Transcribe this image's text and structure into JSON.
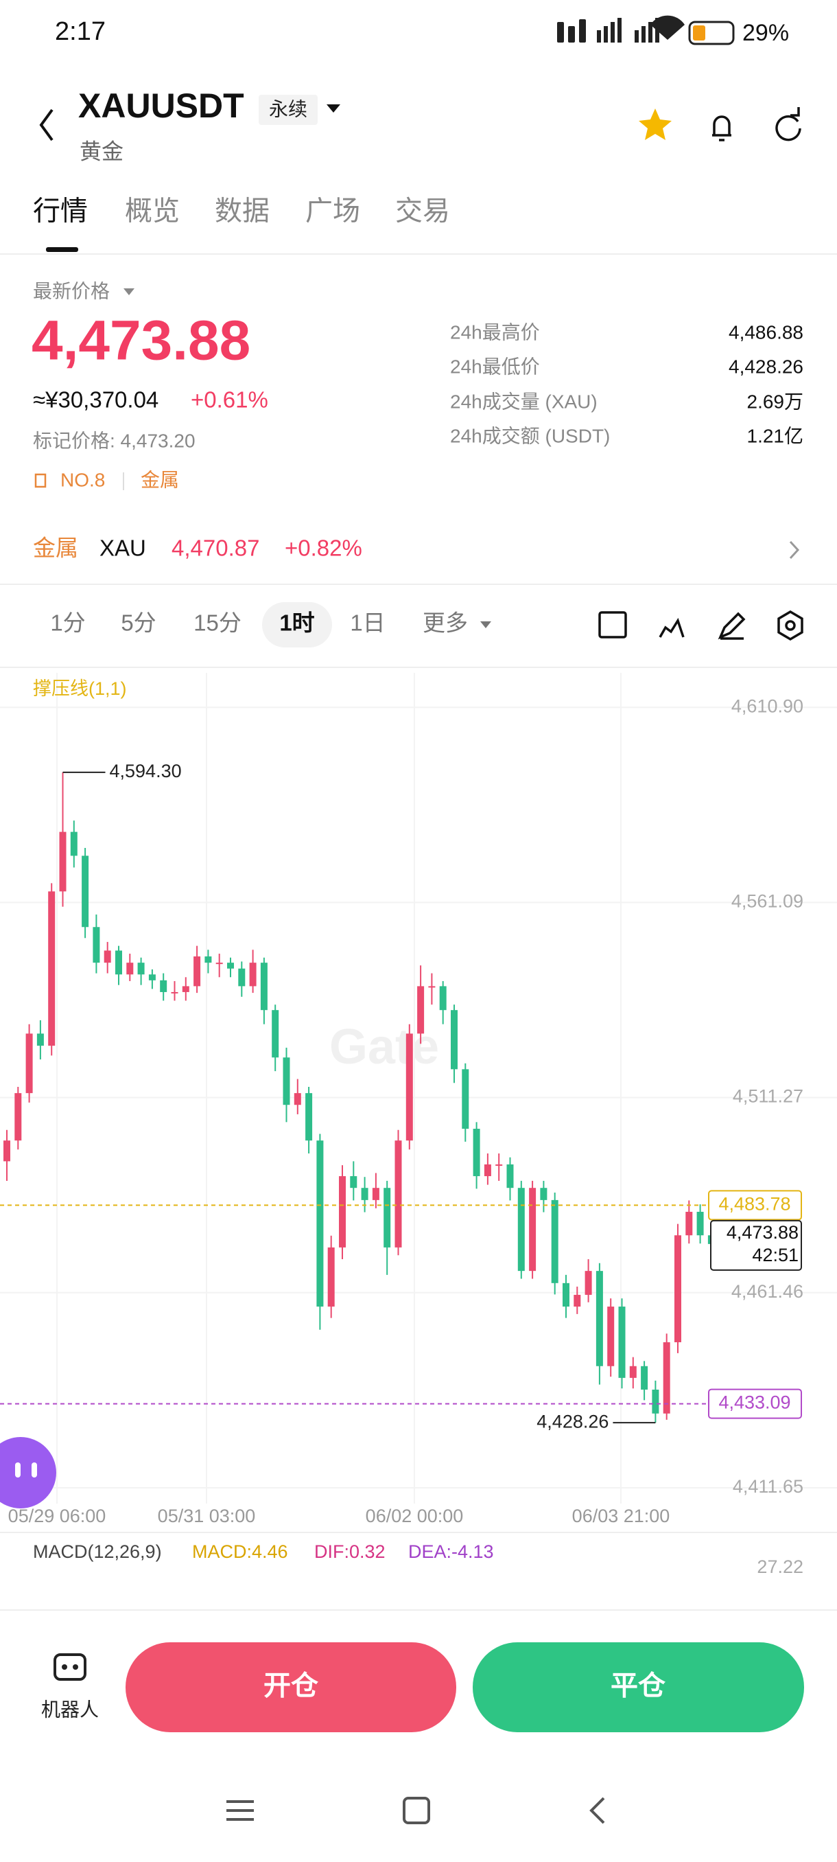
{
  "status_bar": {
    "time": "2:17",
    "battery": "29%"
  },
  "header": {
    "symbol": "XAUUSDT",
    "contract_type": "永续",
    "subtitle": "黄金"
  },
  "tabs": [
    "行情",
    "概览",
    "数据",
    "广场",
    "交易"
  ],
  "price_panel": {
    "label": "最新价格",
    "last_price": "4,473.88",
    "cny_price": "≈¥30,370.04",
    "change": "+0.61%",
    "mark_price": "标记价格: 4,473.20",
    "rank": "NO.8",
    "sector": "金属",
    "stats": [
      {
        "label": "24h最高价",
        "value": "4,486.88"
      },
      {
        "label": "24h最低价",
        "value": "4,428.26"
      },
      {
        "label": "24h成交量 (XAU)",
        "value": "2.69万"
      },
      {
        "label": "24h成交额 (USDT)",
        "value": "1.21亿"
      }
    ]
  },
  "sector_row": {
    "sector": "金属",
    "symbol": "XAU",
    "price": "4,470.87",
    "change": "+0.82%"
  },
  "intervals": [
    "1分",
    "5分",
    "15分",
    "1时",
    "1日",
    "更多"
  ],
  "selected_interval": "1时",
  "chart_data": {
    "type": "candlestick",
    "indicator_label": "撑压线(1,1)",
    "watermark": "Gate",
    "up_color": "#ea4a6e",
    "down_color": "#2dbd8a",
    "ylim": [
      4407.6,
      4619.7
    ],
    "yticks": [
      {
        "value": 4610.9,
        "label": "4,610.90"
      },
      {
        "value": 4561.09,
        "label": "4,561.09"
      },
      {
        "value": 4511.27,
        "label": "4,511.27"
      },
      {
        "value": 4461.46,
        "label": "4,461.46"
      },
      {
        "value": 4411.65,
        "label": "4,411.65"
      }
    ],
    "x_labels": [
      "05/29 06:00",
      "05/31 03:00",
      "06/02 00:00",
      "06/03 21:00"
    ],
    "candles": [
      [
        4495.0,
        4503.0,
        4490.0,
        4500.3
      ],
      [
        4500.3,
        4514.0,
        4498.0,
        4512.4
      ],
      [
        4512.4,
        4530.0,
        4510.0,
        4527.6
      ],
      [
        4527.6,
        4531.0,
        4521.0,
        4524.5
      ],
      [
        4524.5,
        4566.0,
        4522.0,
        4563.9
      ],
      [
        4563.9,
        4594.3,
        4560.0,
        4579.1
      ],
      [
        4579.1,
        4582.0,
        4570.0,
        4573.0
      ],
      [
        4573.0,
        4575.0,
        4552.0,
        4554.8
      ],
      [
        4554.8,
        4558.0,
        4543.0,
        4545.7
      ],
      [
        4545.7,
        4551.0,
        4543.0,
        4548.8
      ],
      [
        4548.8,
        4550.0,
        4540.0,
        4542.7
      ],
      [
        4542.7,
        4548.0,
        4541.0,
        4545.7
      ],
      [
        4545.7,
        4547.0,
        4540.0,
        4542.7
      ],
      [
        4542.7,
        4544.0,
        4539.0,
        4541.2
      ],
      [
        4541.2,
        4543.0,
        4536.0,
        4538.2
      ],
      [
        4538.2,
        4541.0,
        4536.0,
        4538.2
      ],
      [
        4538.2,
        4542.0,
        4536.0,
        4539.7
      ],
      [
        4539.7,
        4550.0,
        4538.0,
        4547.3
      ],
      [
        4547.3,
        4549.0,
        4543.0,
        4545.7
      ],
      [
        4545.7,
        4548.0,
        4542.0,
        4545.7
      ],
      [
        4545.7,
        4547.0,
        4542.0,
        4544.2
      ],
      [
        4544.2,
        4546.0,
        4537.0,
        4539.7
      ],
      [
        4539.7,
        4549.0,
        4538.0,
        4545.7
      ],
      [
        4545.7,
        4547.0,
        4530.0,
        4533.6
      ],
      [
        4533.6,
        4535.0,
        4518.0,
        4521.5
      ],
      [
        4521.5,
        4524.0,
        4505.0,
        4509.4
      ],
      [
        4509.4,
        4516.0,
        4507.0,
        4512.4
      ],
      [
        4512.4,
        4514.0,
        4497.0,
        4500.3
      ],
      [
        4500.3,
        4502.0,
        4452.0,
        4457.9
      ],
      [
        4457.9,
        4476.0,
        4455.0,
        4473.0
      ],
      [
        4473.0,
        4494.0,
        4470.0,
        4491.2
      ],
      [
        4491.2,
        4495.0,
        4485.0,
        4488.2
      ],
      [
        4488.2,
        4491.0,
        4482.0,
        4485.1
      ],
      [
        4485.1,
        4492.0,
        4483.0,
        4488.2
      ],
      [
        4488.2,
        4490.0,
        4466.0,
        4473.0
      ],
      [
        4473.0,
        4503.0,
        4471.0,
        4500.3
      ],
      [
        4500.3,
        4530.0,
        4498.0,
        4527.6
      ],
      [
        4527.6,
        4545.0,
        4525.0,
        4539.7
      ],
      [
        4539.7,
        4543.0,
        4535.0,
        4539.7
      ],
      [
        4539.7,
        4541.0,
        4530.0,
        4533.6
      ],
      [
        4533.6,
        4535.0,
        4515.0,
        4518.5
      ],
      [
        4518.5,
        4520.0,
        4500.0,
        4503.3
      ],
      [
        4503.3,
        4505.0,
        4488.0,
        4491.2
      ],
      [
        4491.2,
        4497.0,
        4489.0,
        4494.2
      ],
      [
        4494.2,
        4497.0,
        4490.0,
        4494.2
      ],
      [
        4494.2,
        4496.0,
        4485.0,
        4488.2
      ],
      [
        4488.2,
        4490.0,
        4465.0,
        4467.0
      ],
      [
        4467.0,
        4490.0,
        4465.0,
        4488.2
      ],
      [
        4488.2,
        4490.0,
        4482.0,
        4485.1
      ],
      [
        4485.1,
        4487.0,
        4461.0,
        4463.9
      ],
      [
        4463.9,
        4466.0,
        4455.0,
        4457.9
      ],
      [
        4457.9,
        4463.0,
        4456.0,
        4460.9
      ],
      [
        4460.9,
        4470.0,
        4459.0,
        4467.0
      ],
      [
        4467.0,
        4469.0,
        4438.0,
        4442.7
      ],
      [
        4442.7,
        4460.0,
        4440.0,
        4457.9
      ],
      [
        4457.9,
        4460.0,
        4437.0,
        4439.7
      ],
      [
        4439.7,
        4445.0,
        4437.0,
        4442.7
      ],
      [
        4442.7,
        4444.0,
        4434.0,
        4436.7
      ],
      [
        4436.7,
        4439.0,
        4428.26,
        4430.6
      ],
      [
        4430.6,
        4451.0,
        4429.0,
        4448.8
      ],
      [
        4448.8,
        4479.0,
        4446.0,
        4476.1
      ],
      [
        4476.1,
        4485.0,
        4474.0,
        4482.1
      ],
      [
        4482.1,
        4484.0,
        4474.0,
        4476.1
      ],
      [
        4476.1,
        4478.0,
        4471.0,
        4473.88
      ]
    ],
    "high_mark": {
      "value": 4594.3,
      "label": "4,594.30"
    },
    "low_mark": {
      "value": 4428.26,
      "label": "4,428.26"
    },
    "price_lines": [
      {
        "value": 4483.78,
        "label": "4,483.78",
        "color": "#e3b514"
      },
      {
        "value": 4433.09,
        "label": "4,433.09",
        "color": "#b14ac9"
      }
    ],
    "current_price": {
      "value": 4473.88,
      "label": "4,473.88",
      "countdown": "42:51"
    }
  },
  "macd": {
    "label": "MACD(12,26,9)",
    "macd": "MACD:4.46",
    "dif": "DIF:0.32",
    "dea": "DEA:-4.13",
    "axis_label": "27.22"
  },
  "bottom_bar": {
    "robot": "机器人",
    "open": "开仓",
    "close": "平仓"
  }
}
